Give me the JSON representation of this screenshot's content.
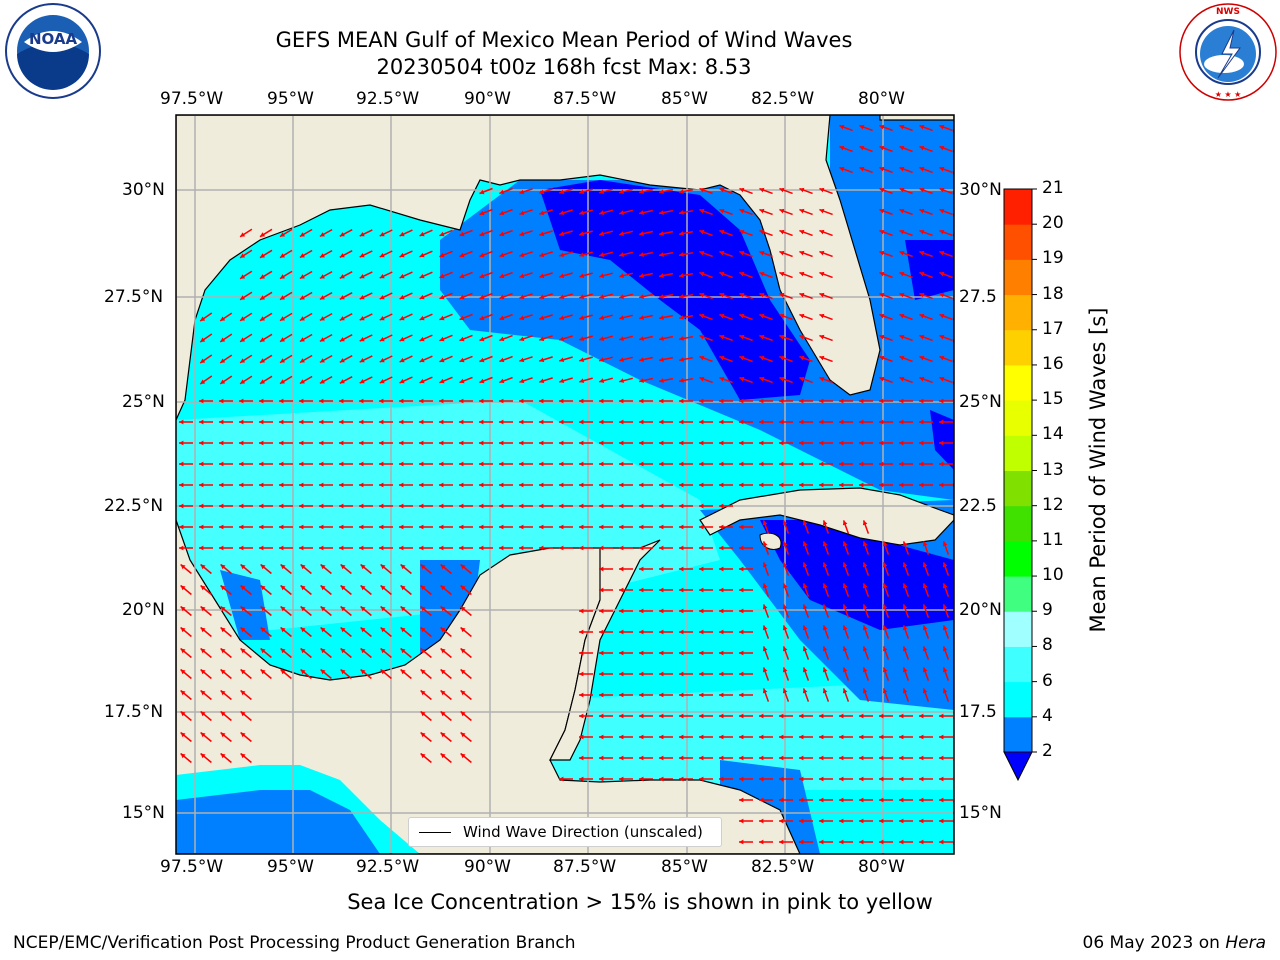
{
  "title": {
    "line1": "GEFS MEAN Gulf of Mexico Mean Period of Wind Waves",
    "line2": "20230504 t00z 168h fcst   Max: 8.53"
  },
  "logos": {
    "left": "NOAA",
    "right_text": "NATIONAL WEATHER SERVICE"
  },
  "axes": {
    "lon_ticks": [
      "97.5°W",
      "95°W",
      "92.5°W",
      "90°W",
      "87.5°W",
      "85°W",
      "82.5°W",
      "80°W"
    ],
    "lat_ticks": [
      "30°N",
      "27.5°N",
      "25°N",
      "22.5°N",
      "20°N",
      "17.5°N",
      "15°N"
    ],
    "lat_ticks_right": [
      "30°N",
      "27.5",
      "25°N",
      "22.5",
      "20°N",
      "17.5",
      "15°N"
    ],
    "lon_range": [
      -98,
      -78.3
    ],
    "lat_range": [
      14.0,
      31.8
    ]
  },
  "colorbar": {
    "levels": [
      "2",
      "4",
      "6",
      "8",
      "9",
      "10",
      "11",
      "12",
      "13",
      "14",
      "15",
      "16",
      "17",
      "18",
      "19",
      "20",
      "21"
    ],
    "colors": [
      "#0000ff",
      "#0080ff",
      "#00ffff",
      "#40ffff",
      "#a0ffff",
      "#40ff80",
      "#00ff00",
      "#40e000",
      "#80e000",
      "#c0ff00",
      "#e8ff00",
      "#ffff00",
      "#ffd000",
      "#ffb000",
      "#ff8000",
      "#ff5000",
      "#ff2000",
      "#ff0000"
    ],
    "title": "Mean Period of Wind Waves [s]"
  },
  "legend": {
    "label": "Wind Wave Direction (unscaled)"
  },
  "note": "Sea Ice Concentration > 15% is shown in pink to yellow",
  "footer": {
    "left": "NCEP/EMC/Verification Post Processing Product Generation Branch",
    "right_date": "06 May 2023 on ",
    "right_host": "Hera"
  }
}
